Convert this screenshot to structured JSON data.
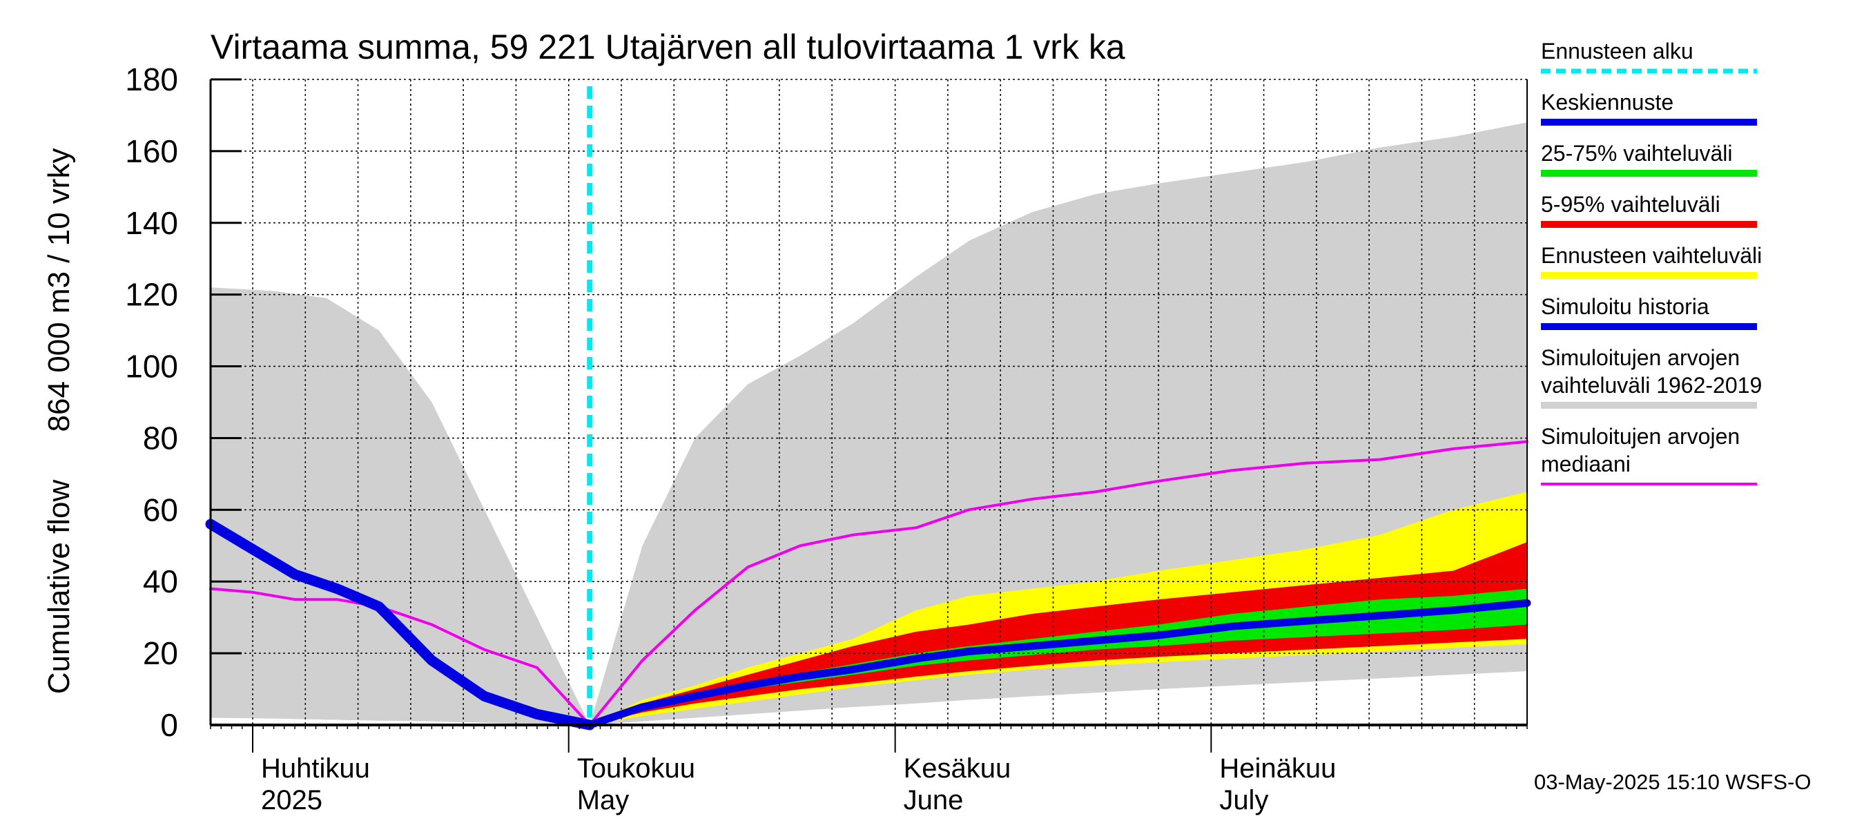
{
  "chart_data": {
    "type": "area",
    "title": "Virtaama summa, 59 221 Utajärven all tulovirtaama 1 vrk ka",
    "ylabel_fi": "864 000 m3 / 10 vrky",
    "ylabel_en": "Cumulative flow",
    "ylim": [
      0,
      180
    ],
    "yticks": [
      0,
      20,
      40,
      60,
      80,
      100,
      120,
      140,
      160,
      180
    ],
    "x_range": [
      "2025-03-28",
      "2025-07-31"
    ],
    "months": [
      {
        "date": "2025-04-01",
        "fi": "Huhtikuu",
        "en": "2025"
      },
      {
        "date": "2025-05-01",
        "fi": "Toukokuu",
        "en": "May"
      },
      {
        "date": "2025-06-01",
        "fi": "Kesäkuu",
        "en": "June"
      },
      {
        "date": "2025-07-01",
        "fi": "Heinäkuu",
        "en": "July"
      }
    ],
    "forecast_start": "2025-05-03",
    "grid": true,
    "legend_position": "right",
    "legend": [
      {
        "label": "Ennusteen alku",
        "color": "#00e8f0",
        "style": "dashed"
      },
      {
        "label": "Keskiennuste",
        "color": "#0000e0"
      },
      {
        "label": "25-75% vaihteluväli",
        "color": "#00e800"
      },
      {
        "label": "5-95% vaihteluväli",
        "color": "#f00000"
      },
      {
        "label": "Ennusteen vaihteluväli",
        "color": "#ffff00"
      },
      {
        "label": "Simuloitu historia",
        "color": "#0000e0"
      },
      {
        "label": "Simuloitujen arvojen vaihteluväli 1962-2019",
        "color": "#d0d0d0"
      },
      {
        "label": "Simuloitujen arvojen mediaani",
        "color": "#ee00ee"
      }
    ],
    "series": [
      {
        "name": "Simuloitujen arvojen vaihteluväli 1962-2019",
        "kind": "band",
        "color": "#d0d0d0",
        "x": [
          "2025-03-28",
          "2025-04-03",
          "2025-04-08",
          "2025-04-13",
          "2025-04-18",
          "2025-04-23",
          "2025-04-28",
          "2025-05-03",
          "2025-05-08",
          "2025-05-13",
          "2025-05-18",
          "2025-05-23",
          "2025-05-28",
          "2025-06-03",
          "2025-06-08",
          "2025-06-14",
          "2025-06-20",
          "2025-06-26",
          "2025-07-03",
          "2025-07-10",
          "2025-07-17",
          "2025-07-24",
          "2025-07-31"
        ],
        "low": [
          2,
          1.8,
          1.5,
          1.2,
          1,
          0.6,
          0.2,
          0,
          1,
          2,
          3,
          4,
          5,
          6,
          7,
          8,
          9,
          10,
          11,
          12,
          13,
          14,
          15
        ],
        "high": [
          122,
          121,
          119,
          110,
          90,
          60,
          30,
          0,
          50,
          80,
          95,
          103,
          112,
          125,
          135,
          143,
          148,
          151,
          154,
          157,
          161,
          164,
          168
        ]
      },
      {
        "name": "Ennusteen vaihteluväli",
        "kind": "band",
        "color": "#ffff00",
        "x": [
          "2025-05-03",
          "2025-05-08",
          "2025-05-13",
          "2025-05-18",
          "2025-05-23",
          "2025-05-28",
          "2025-06-03",
          "2025-06-08",
          "2025-06-14",
          "2025-06-20",
          "2025-06-26",
          "2025-07-03",
          "2025-07-10",
          "2025-07-17",
          "2025-07-24",
          "2025-07-31"
        ],
        "low": [
          0,
          2.5,
          4.5,
          6.5,
          8.5,
          10.5,
          12.5,
          14,
          15.5,
          16.5,
          17.5,
          18.5,
          19.5,
          20.5,
          21.5,
          22.5
        ],
        "high": [
          0,
          7,
          11,
          16,
          20,
          24,
          32,
          36,
          38,
          40,
          43,
          46,
          49,
          53,
          60,
          65
        ]
      },
      {
        "name": "5-95% vaihteluväli",
        "kind": "band",
        "color": "#f00000",
        "x": [
          "2025-05-03",
          "2025-05-08",
          "2025-05-13",
          "2025-05-18",
          "2025-05-23",
          "2025-05-28",
          "2025-06-03",
          "2025-06-08",
          "2025-06-14",
          "2025-06-20",
          "2025-06-26",
          "2025-07-03",
          "2025-07-10",
          "2025-07-17",
          "2025-07-24",
          "2025-07-31"
        ],
        "low": [
          0,
          3.5,
          6,
          8,
          10,
          11.5,
          13.5,
          15,
          16.5,
          18,
          19,
          20,
          21,
          22,
          23,
          24
        ],
        "high": [
          0,
          6,
          10,
          14,
          18,
          22,
          26,
          28,
          31,
          33,
          35,
          37,
          39,
          41,
          43,
          51
        ]
      },
      {
        "name": "25-75% vaihteluväli",
        "kind": "band",
        "color": "#00e800",
        "x": [
          "2025-05-03",
          "2025-05-08",
          "2025-05-13",
          "2025-05-18",
          "2025-05-23",
          "2025-05-28",
          "2025-06-03",
          "2025-06-08",
          "2025-06-14",
          "2025-06-20",
          "2025-06-26",
          "2025-07-03",
          "2025-07-10",
          "2025-07-17",
          "2025-07-24",
          "2025-07-31"
        ],
        "low": [
          0,
          4.5,
          7.5,
          10,
          12,
          14,
          16.5,
          18,
          19.5,
          21,
          22,
          23.5,
          24.5,
          25.5,
          26.5,
          28
        ],
        "high": [
          0,
          5.5,
          8.5,
          12,
          14.5,
          17,
          20,
          22,
          24,
          26,
          28,
          31,
          33,
          35,
          36,
          38
        ]
      },
      {
        "name": "Simuloitujen arvojen mediaani",
        "kind": "line",
        "color": "#ee00ee",
        "x": [
          "2025-03-28",
          "2025-04-01",
          "2025-04-05",
          "2025-04-09",
          "2025-04-13",
          "2025-04-18",
          "2025-04-23",
          "2025-04-28",
          "2025-05-03",
          "2025-05-08",
          "2025-05-13",
          "2025-05-18",
          "2025-05-23",
          "2025-05-28",
          "2025-06-03",
          "2025-06-08",
          "2025-06-14",
          "2025-06-20",
          "2025-06-26",
          "2025-07-03",
          "2025-07-10",
          "2025-07-17",
          "2025-07-24",
          "2025-07-31"
        ],
        "y": [
          38,
          37,
          35,
          35,
          33,
          28,
          21,
          16,
          0,
          18,
          32,
          44,
          50,
          53,
          55,
          60,
          63,
          65,
          68,
          71,
          73,
          74,
          77,
          79
        ]
      },
      {
        "name": "Simuloitu historia",
        "kind": "line",
        "color": "#0000e0",
        "x": [
          "2025-03-28",
          "2025-04-01",
          "2025-04-05",
          "2025-04-09",
          "2025-04-13",
          "2025-04-18",
          "2025-04-23",
          "2025-04-28",
          "2025-05-03"
        ],
        "y": [
          56,
          49,
          42,
          38,
          33,
          18,
          8,
          3,
          0
        ]
      },
      {
        "name": "Keskiennuste",
        "kind": "line",
        "color": "#0000e0",
        "x": [
          "2025-05-03",
          "2025-05-08",
          "2025-05-13",
          "2025-05-18",
          "2025-05-23",
          "2025-05-28",
          "2025-06-03",
          "2025-06-08",
          "2025-06-14",
          "2025-06-20",
          "2025-06-26",
          "2025-07-03",
          "2025-07-10",
          "2025-07-17",
          "2025-07-24",
          "2025-07-31"
        ],
        "y": [
          0,
          5,
          8,
          11,
          13.5,
          15.5,
          18.5,
          20.5,
          22,
          23.5,
          25,
          27.5,
          29,
          30.5,
          32,
          34
        ]
      }
    ]
  },
  "footer": {
    "timestamp": "03-May-2025 15:10 WSFS-O"
  }
}
